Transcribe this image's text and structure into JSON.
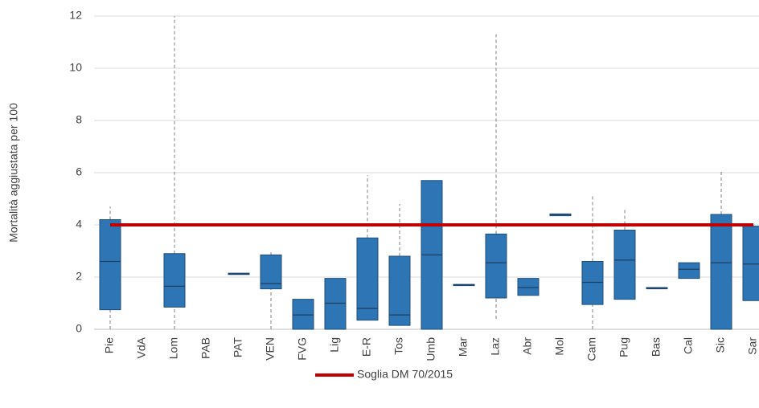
{
  "chart_data": {
    "type": "box",
    "ylabel": "Mortalità aggiustata per 100",
    "categories": [
      "Pie",
      "VdA",
      "Lom",
      "PAB",
      "PAT",
      "VEN",
      "FVG",
      "Lig",
      "E-R",
      "Tos",
      "Umb",
      "Mar",
      "Laz",
      "Abr",
      "Mol",
      "Cam",
      "Pug",
      "Bas",
      "Cal",
      "Sic",
      "Sar"
    ],
    "color": "#2e75b6",
    "min": [
      0,
      null,
      0,
      null,
      2.1,
      0,
      0,
      0,
      0.35,
      0.15,
      0,
      1.68,
      0.4,
      1.3,
      4.35,
      0,
      1.15,
      1.55,
      1.95,
      0,
      1.1
    ],
    "q1": [
      0.75,
      null,
      0.85,
      null,
      2.1,
      1.55,
      0,
      0,
      0.35,
      0.15,
      0,
      1.68,
      1.2,
      1.3,
      4.35,
      0.95,
      1.15,
      1.55,
      1.95,
      0,
      1.1
    ],
    "median": [
      2.6,
      null,
      1.65,
      null,
      2.12,
      1.75,
      0.55,
      1.0,
      0.8,
      0.55,
      2.85,
      1.7,
      2.55,
      1.6,
      4.4,
      1.8,
      2.65,
      1.57,
      2.3,
      2.55,
      2.5
    ],
    "q3": [
      4.2,
      null,
      2.9,
      null,
      2.15,
      2.85,
      1.15,
      1.95,
      3.5,
      2.8,
      5.7,
      1.72,
      3.65,
      1.95,
      4.42,
      2.6,
      3.8,
      1.6,
      2.55,
      4.4,
      3.95
    ],
    "max": [
      4.7,
      null,
      12,
      null,
      2.15,
      2.95,
      1.15,
      1.95,
      5.9,
      4.8,
      5.7,
      1.72,
      11.3,
      1.95,
      4.42,
      5.15,
      4.6,
      1.6,
      2.55,
      6.1,
      4.0
    ],
    "threshold": {
      "name": "Soglia DM 70/2015",
      "value": 4,
      "color": "#c00000"
    },
    "ylim": [
      0,
      12
    ],
    "yticks": [
      0,
      2,
      4,
      6,
      8,
      10,
      12
    ],
    "grid": true,
    "legend": "bottom"
  }
}
